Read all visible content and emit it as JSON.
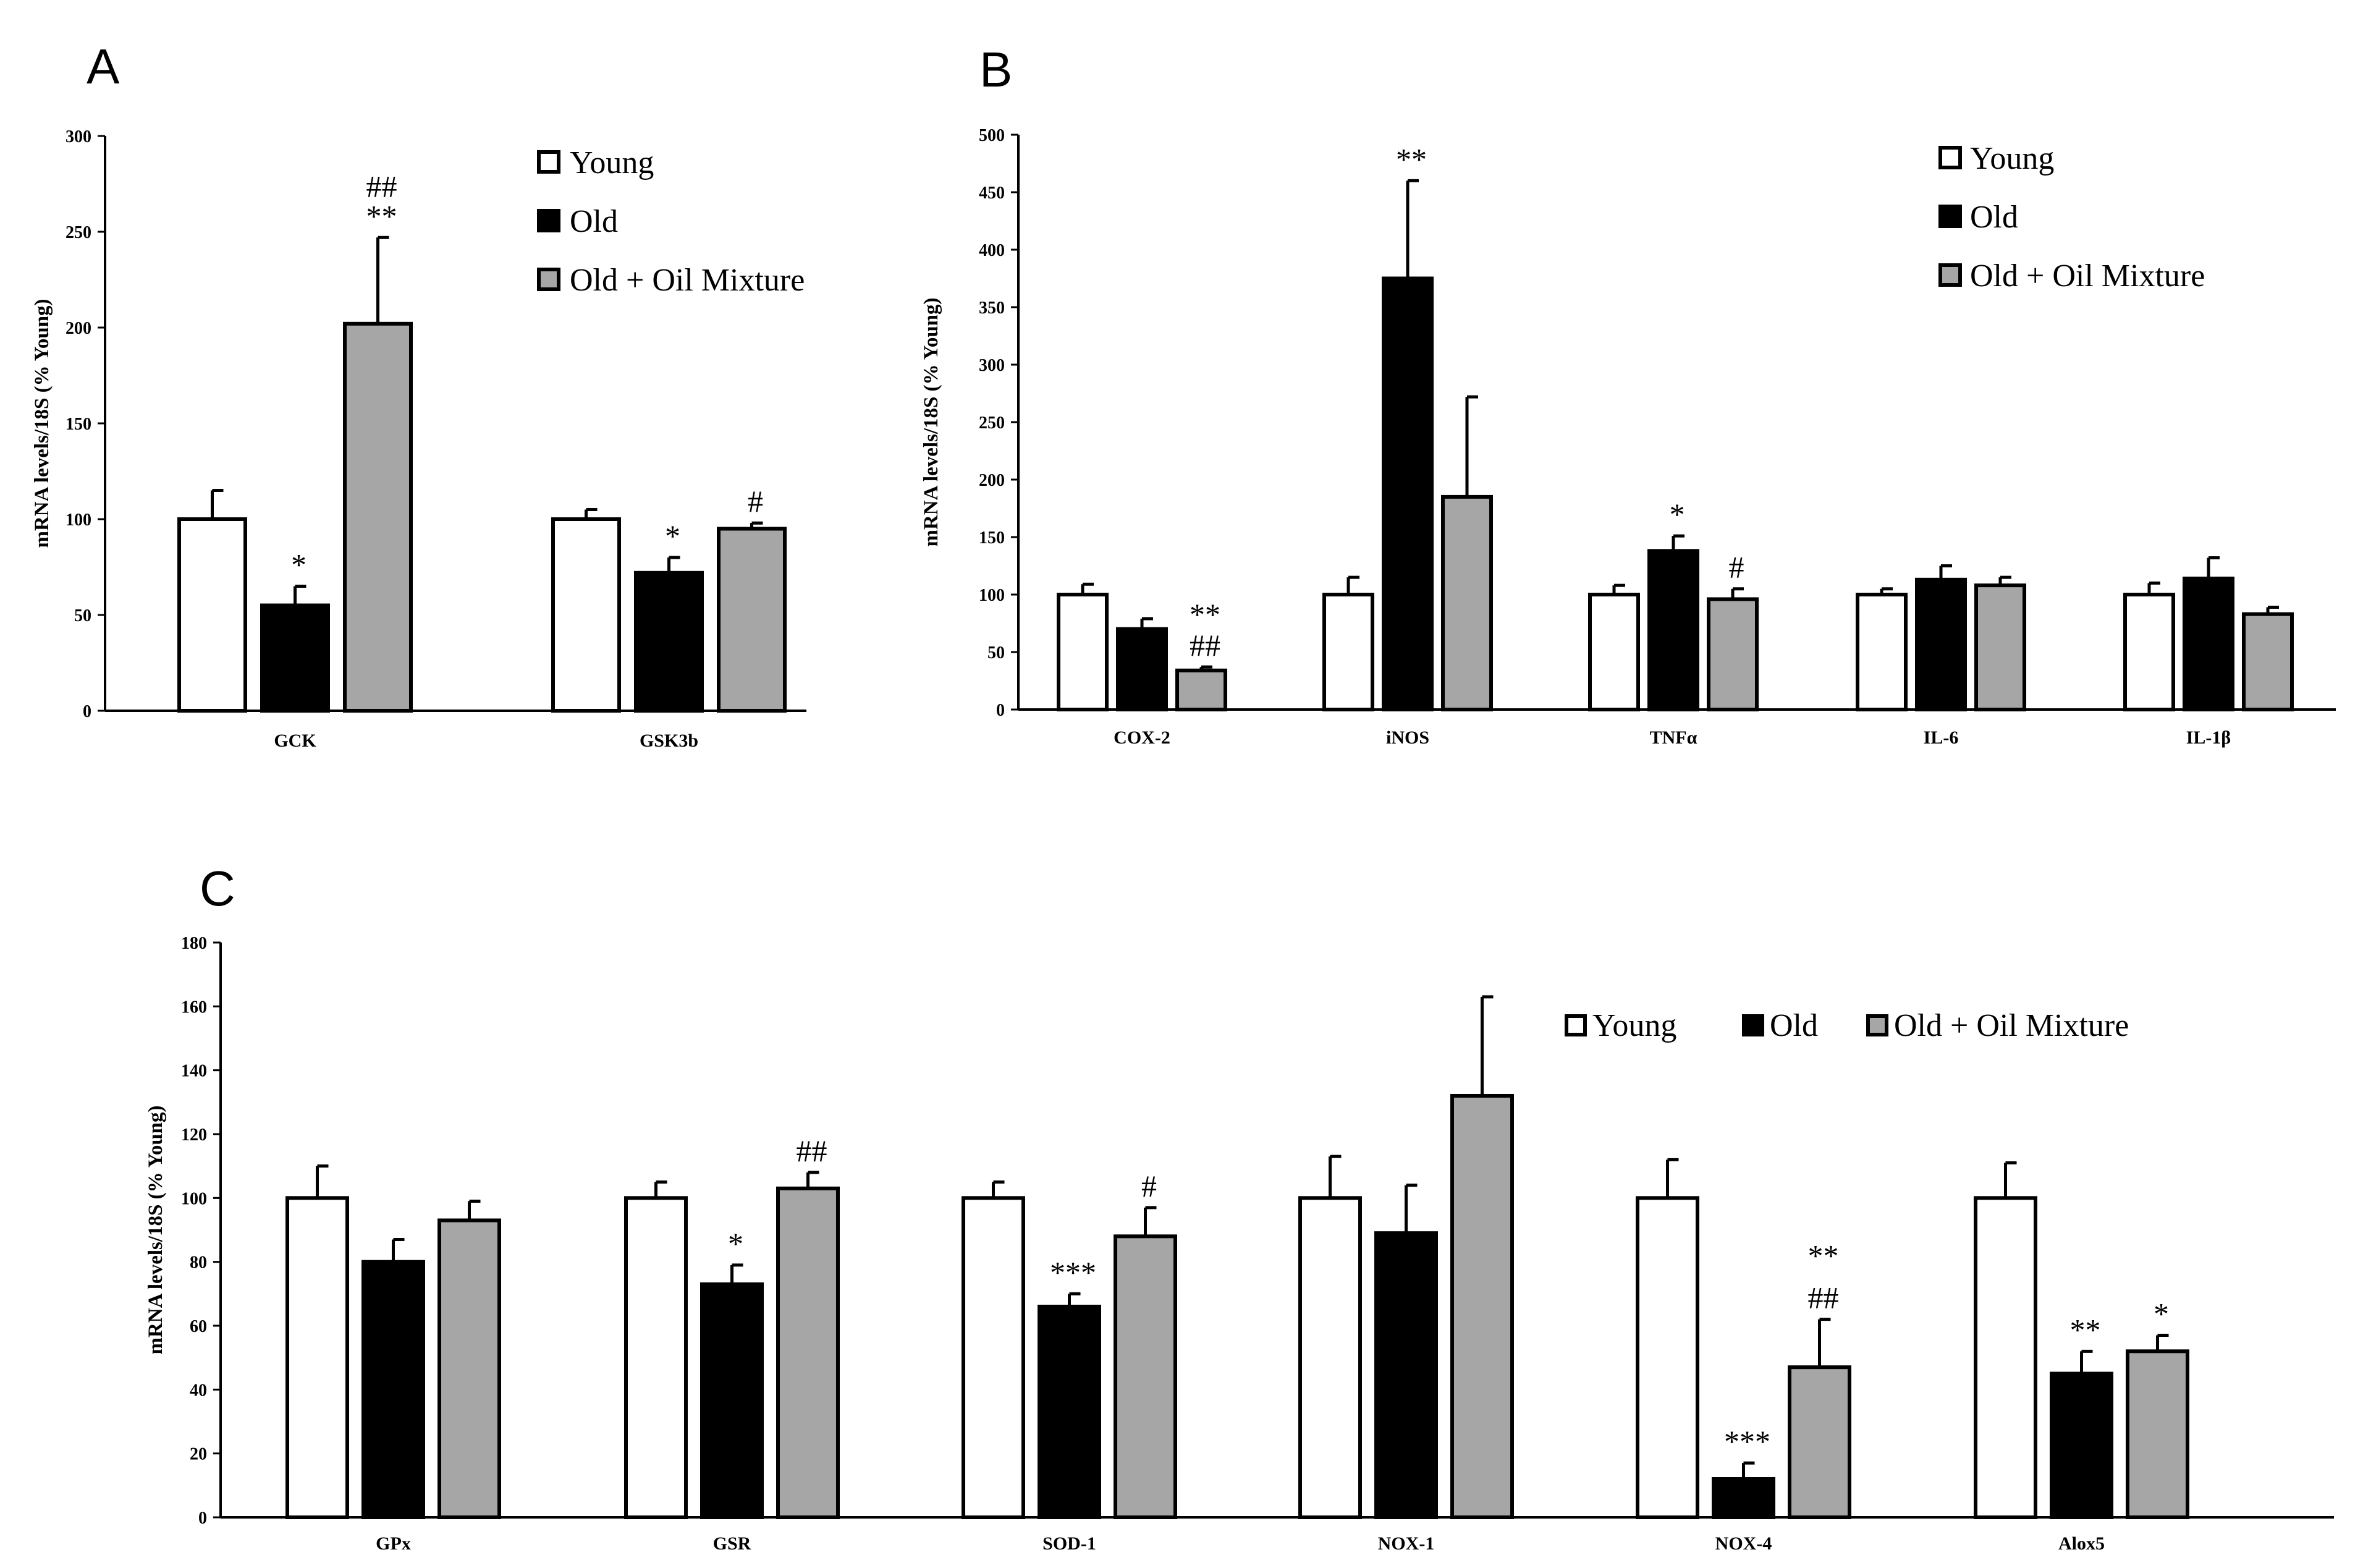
{
  "chart_data": [
    {
      "panel": "A",
      "type": "bar",
      "ylabel": "mRNA levels/18S (% Young)",
      "ylim": [
        0,
        300
      ],
      "yticks": [
        0,
        50,
        100,
        150,
        200,
        250,
        300
      ],
      "categories": [
        "GCK",
        "GSK3b"
      ],
      "series": [
        {
          "name": "Young",
          "color": "#ffffff",
          "values": [
            100,
            100
          ],
          "errors": [
            15,
            5
          ]
        },
        {
          "name": "Old",
          "color": "#000000",
          "values": [
            55,
            72
          ],
          "errors": [
            10,
            8
          ]
        },
        {
          "name": "Old + Oil Mixture",
          "color": "#a6a6a6",
          "values": [
            202,
            95
          ],
          "errors": [
            45,
            3
          ]
        }
      ],
      "annotations": [
        {
          "category": 0,
          "series": 1,
          "lines": [
            "*"
          ]
        },
        {
          "category": 0,
          "series": 2,
          "lines": [
            "##",
            "**"
          ]
        },
        {
          "category": 1,
          "series": 1,
          "lines": [
            "*"
          ]
        },
        {
          "category": 1,
          "series": 2,
          "lines": [
            "#"
          ]
        }
      ],
      "legend": {
        "position": "top-right",
        "labels": [
          "Young",
          "Old",
          "Old + Oil Mixture"
        ]
      }
    },
    {
      "panel": "B",
      "type": "bar",
      "ylabel": "mRNA levels/18S (% Young)",
      "ylim": [
        0,
        500
      ],
      "yticks": [
        0,
        50,
        100,
        150,
        200,
        250,
        300,
        350,
        400,
        450,
        500
      ],
      "categories": [
        "COX-2",
        "iNOS",
        "TNFα",
        "IL-6",
        "IL-1β"
      ],
      "series": [
        {
          "name": "Young",
          "color": "#ffffff",
          "values": [
            100,
            100,
            100,
            100,
            100
          ],
          "errors": [
            9,
            15,
            8,
            5,
            10
          ]
        },
        {
          "name": "Old",
          "color": "#000000",
          "values": [
            70,
            375,
            138,
            113,
            114
          ],
          "errors": [
            9,
            85,
            13,
            12,
            18
          ]
        },
        {
          "name": "Old + Oil Mixture",
          "color": "#a6a6a6",
          "values": [
            34,
            185,
            96,
            108,
            83
          ],
          "errors": [
            3,
            87,
            9,
            7,
            6
          ]
        }
      ],
      "annotations": [
        {
          "category": 0,
          "series": 2,
          "lines": [
            "**",
            "##"
          ]
        },
        {
          "category": 1,
          "series": 1,
          "lines": [
            "**"
          ]
        },
        {
          "category": 2,
          "series": 1,
          "lines": [
            "*"
          ]
        },
        {
          "category": 2,
          "series": 2,
          "lines": [
            "#"
          ]
        }
      ],
      "legend": {
        "position": "top-right",
        "labels": [
          "Young",
          "Old",
          "Old + Oil Mixture"
        ]
      }
    },
    {
      "panel": "C",
      "type": "bar",
      "ylabel": "mRNA levels/18S (% Young)",
      "ylim": [
        0,
        180
      ],
      "yticks": [
        0,
        20,
        40,
        60,
        80,
        100,
        120,
        140,
        160,
        180
      ],
      "categories": [
        "GPx",
        "GSR",
        "SOD-1",
        "NOX-1",
        "NOX-4",
        "Alox5"
      ],
      "series": [
        {
          "name": "Young",
          "color": "#ffffff",
          "values": [
            100,
            100,
            100,
            100,
            100,
            100
          ],
          "errors": [
            10,
            5,
            5,
            13,
            12,
            11
          ]
        },
        {
          "name": "Old",
          "color": "#000000",
          "values": [
            80,
            73,
            66,
            89,
            12,
            45
          ],
          "errors": [
            7,
            6,
            4,
            15,
            5,
            7
          ]
        },
        {
          "name": "Old + Oil Mixture",
          "color": "#a6a6a6",
          "values": [
            93,
            103,
            88,
            132,
            47,
            52
          ],
          "errors": [
            6,
            5,
            9,
            31,
            15,
            5
          ]
        }
      ],
      "annotations": [
        {
          "category": 1,
          "series": 1,
          "lines": [
            "*"
          ]
        },
        {
          "category": 1,
          "series": 2,
          "lines": [
            "##"
          ]
        },
        {
          "category": 2,
          "series": 1,
          "lines": [
            "***"
          ]
        },
        {
          "category": 2,
          "series": 2,
          "lines": [
            "#"
          ]
        },
        {
          "category": 4,
          "series": 1,
          "lines": [
            "***"
          ]
        },
        {
          "category": 4,
          "series": 2,
          "lines": [
            "**",
            "##"
          ]
        },
        {
          "category": 5,
          "series": 1,
          "lines": [
            "**"
          ]
        },
        {
          "category": 5,
          "series": 2,
          "lines": [
            "*"
          ]
        }
      ],
      "legend": {
        "position": "top-right",
        "labels": [
          "Young",
          "Old",
          "Old + Oil Mixture"
        ]
      }
    }
  ]
}
